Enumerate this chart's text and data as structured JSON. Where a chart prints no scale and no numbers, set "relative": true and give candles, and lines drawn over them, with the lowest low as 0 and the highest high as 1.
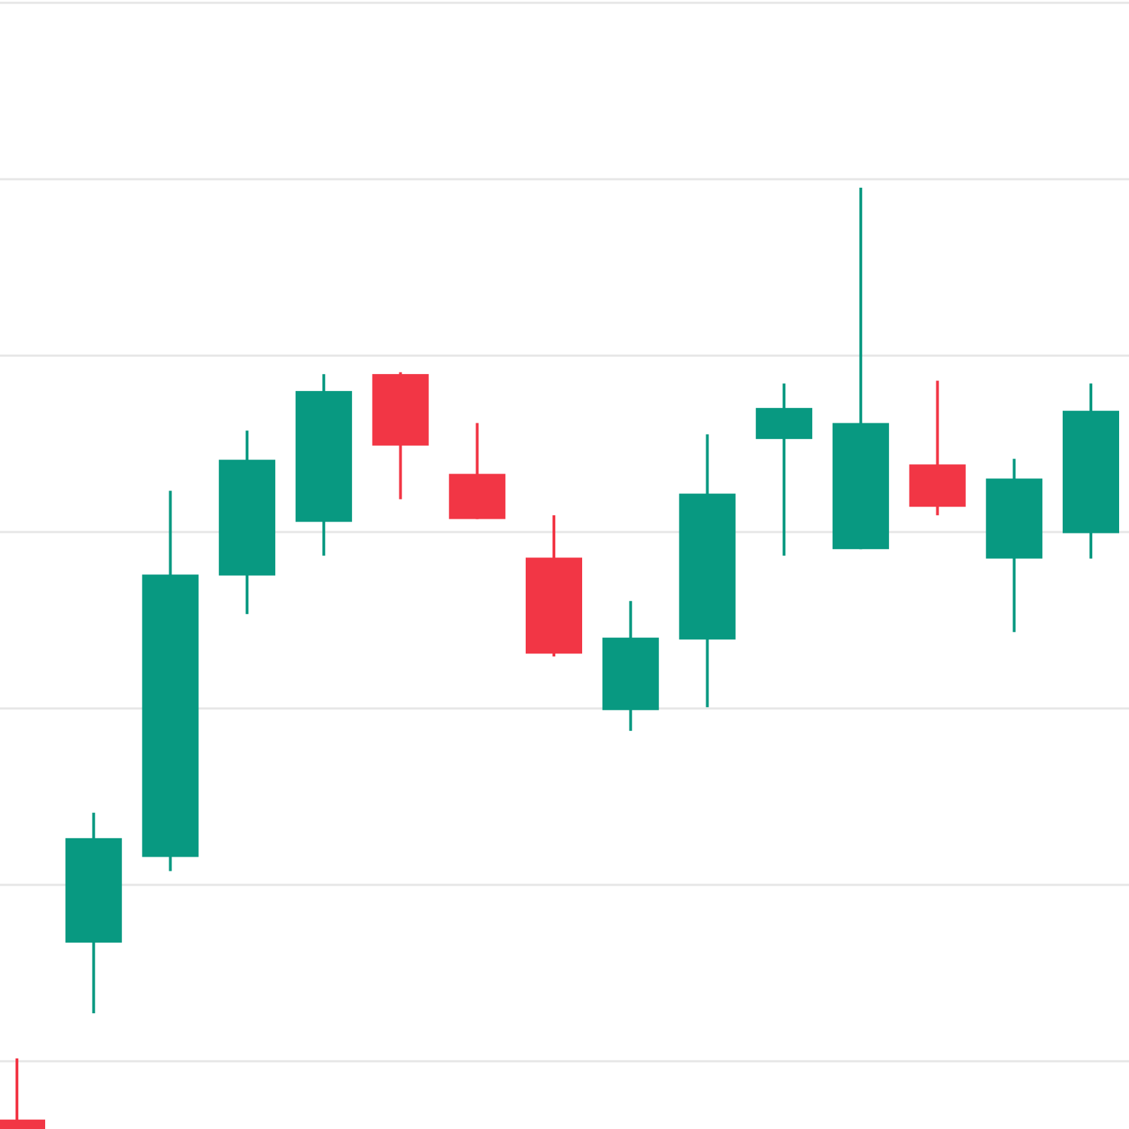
{
  "chart_data": {
    "type": "candlestick",
    "relative": true,
    "grid": "y",
    "categories": [
      null,
      null,
      null,
      null,
      null,
      null,
      null,
      null,
      null,
      null,
      null,
      null,
      null,
      null,
      null
    ],
    "ohlc": [
      [
        0.01,
        0.075,
        0,
        0
      ],
      [
        0.198,
        0.336,
        0.123,
        0.309
      ],
      [
        0.289,
        0.678,
        0.274,
        0.589
      ],
      [
        0.588,
        0.742,
        0.547,
        0.711
      ],
      [
        0.645,
        0.802,
        0.609,
        0.784
      ],
      [
        0.802,
        0.804,
        0.669,
        0.726
      ],
      [
        0.696,
        0.75,
        0.648,
        0.648
      ],
      [
        0.607,
        0.652,
        0.502,
        0.505
      ],
      [
        0.445,
        0.561,
        0.423,
        0.522
      ],
      [
        0.52,
        0.738,
        0.448,
        0.675
      ],
      [
        0.733,
        0.792,
        0.609,
        0.766
      ],
      [
        0.616,
        1,
        0.616,
        0.75
      ],
      [
        0.706,
        0.795,
        0.652,
        0.661
      ],
      [
        0.606,
        0.712,
        0.528,
        0.691
      ],
      [
        0.633,
        0.792,
        0.606,
        0.763
      ]
    ],
    "colors": [
      "#f23645",
      "#089981",
      "#089981",
      "#089981",
      "#089981",
      "#f23645",
      "#f23645",
      "#f23645",
      "#089981",
      "#089981",
      "#089981",
      "#089981",
      "#f23645",
      "#089981",
      "#089981"
    ]
  }
}
